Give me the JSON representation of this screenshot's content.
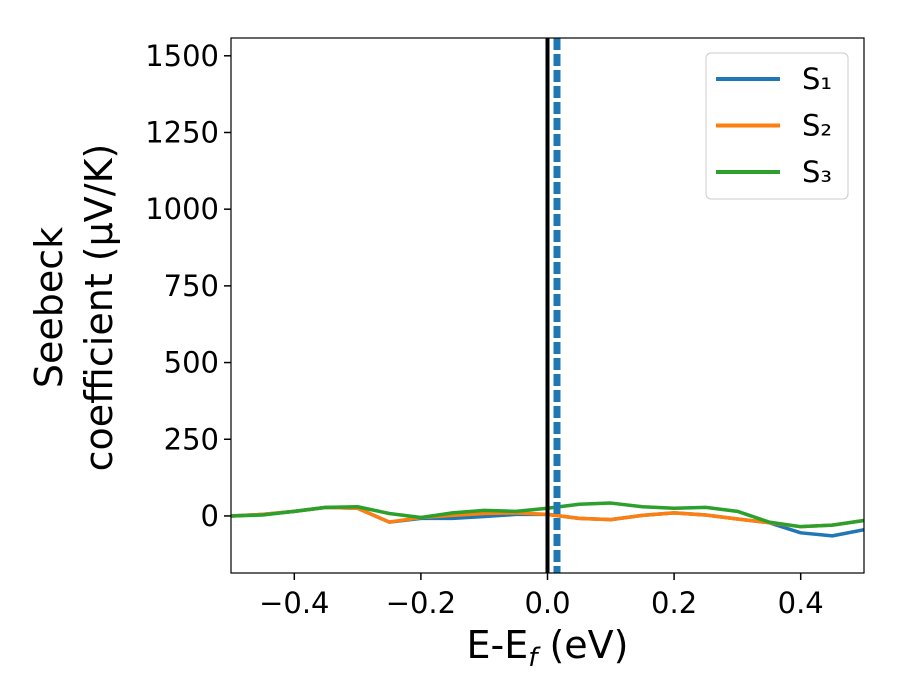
{
  "chart_data": {
    "type": "line",
    "x_label": [
      "E-E",
      "f",
      " (eV)"
    ],
    "y_label": [
      "Seebeck",
      "coefficient  (μV/K)"
    ],
    "x": [
      -0.5,
      -0.45,
      -0.4,
      -0.35,
      -0.3,
      -0.25,
      -0.2,
      -0.15,
      -0.1,
      -0.05,
      0,
      0.05,
      0.1,
      0.15,
      0.2,
      0.25,
      0.3,
      0.35,
      0.4,
      0.45,
      0.5
    ],
    "series": [
      {
        "name": "S₁",
        "color": "#1f77b4",
        "values": [
          0,
          5,
          15,
          28,
          25,
          -20,
          -8,
          -8,
          -2,
          5,
          5,
          -8,
          -12,
          2,
          10,
          3,
          -10,
          -22,
          -55,
          -65,
          -45
        ]
      },
      {
        "name": "S₂",
        "color": "#ff7f0e",
        "values": [
          0,
          5,
          15,
          28,
          25,
          -20,
          -5,
          2,
          8,
          10,
          5,
          -8,
          -12,
          2,
          10,
          3,
          -10,
          -22,
          -35,
          -30,
          -15
        ]
      },
      {
        "name": "S₃",
        "color": "#2ca02c",
        "values": [
          0,
          3,
          15,
          28,
          30,
          8,
          -5,
          10,
          18,
          15,
          25,
          38,
          42,
          30,
          25,
          28,
          15,
          -20,
          -35,
          -30,
          -15
        ]
      }
    ],
    "vlines": [
      {
        "x": 0,
        "color": "#000000",
        "style": "solid"
      },
      {
        "x": 0.015,
        "color": "#1f77b4",
        "style": "dashed"
      }
    ],
    "xlim": [
      -0.5,
      0.5
    ],
    "xticks": [
      {
        "value": -0.4,
        "label": "−0.4"
      },
      {
        "value": -0.2,
        "label": "−0.2"
      },
      {
        "value": 0,
        "label": "0.0"
      },
      0.2,
      0.4
    ],
    "ylim": [
      -186,
      1558
    ],
    "yticks": [
      0,
      250,
      500,
      750,
      1000,
      1250,
      1500
    ],
    "grid": false,
    "legend": "upper-right"
  }
}
